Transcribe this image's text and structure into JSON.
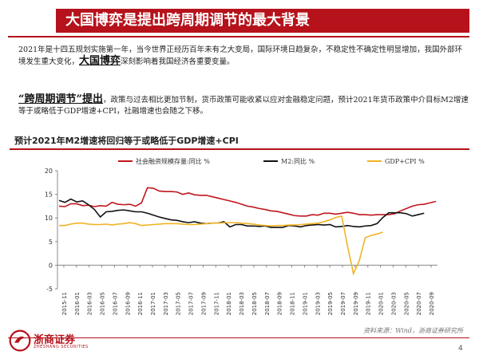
{
  "header": {
    "title": "大国博弈是提出跨周期调节的最大背景"
  },
  "paragraph1": {
    "text_a": "2021年是十四五规划实施第一年，当今世界正经历百年未有之大变局，国际环境日趋复杂，不稳定性不确定性明显增加，我国外部环境发生重大变化，",
    "highlight": "大国博弈",
    "text_b": "深刻影响着我国经济各重要变量。"
  },
  "paragraph2": {
    "highlight": "“跨周期调节”提出",
    "text": "，政策与过去相比更加节制，货币政策可能收紧以应对金融稳定问题，预计2021年货币政策中介目标M2增速等于或略低于GDP增速+CPI，社融增速也会随之下移。"
  },
  "chart_title": "预计2021年M2增速将回归等于或略低于GDP增速+CPI",
  "source": "资料来源：Wind，浙商证券研究所",
  "logo": {
    "name": "浙商证券",
    "sub": "ZHESHANG SECURITIES"
  },
  "page_number": "4",
  "colors": {
    "brand": "#b5121b",
    "social_financing": "#c0161e",
    "m2": "#111111",
    "gdp_cpi": "#f0b323"
  },
  "chart_data": {
    "type": "line",
    "ylim": [
      -5,
      20
    ],
    "yticks": [
      -5,
      0,
      5,
      10,
      15,
      20
    ],
    "x_labels": [
      "2015-11",
      "2016-01",
      "2016-03",
      "2016-05",
      "2016-07",
      "2016-09",
      "2016-11",
      "2017-01",
      "2017-03",
      "2017-05",
      "2017-07",
      "2017-09",
      "2017-11",
      "2018-01",
      "2018-03",
      "2018-05",
      "2018-07",
      "2018-09",
      "2018-11",
      "2019-01",
      "2019-03",
      "2019-05",
      "2019-07",
      "2019-09",
      "2019-11",
      "2020-01",
      "2020-03",
      "2020-05",
      "2020-07",
      "2020-09"
    ],
    "legend_position": "top",
    "series": [
      {
        "name": "社会融资规模存量:同比 %",
        "color": "#c0161e",
        "values": [
          12.5,
          12.4,
          13.0,
          13.0,
          12.6,
          12.7,
          12.4,
          12.6,
          12.5,
          13.3,
          12.9,
          12.8,
          12.9,
          12.5,
          13.2,
          16.4,
          16.3,
          15.7,
          15.6,
          15.6,
          15.5,
          15.0,
          15.3,
          14.9,
          14.8,
          14.8,
          14.5,
          14.2,
          13.9,
          13.6,
          13.3,
          12.9,
          12.5,
          12.3,
          12.0,
          11.8,
          11.5,
          11.4,
          11.1,
          10.8,
          10.5,
          10.4,
          10.4,
          10.7,
          10.6,
          11.0,
          11.0,
          10.8,
          11.0,
          11.2,
          11.0,
          10.7,
          10.7,
          10.6,
          10.7,
          10.7,
          10.7,
          10.9,
          11.5,
          12.0,
          12.5,
          12.8,
          12.9,
          13.2,
          13.5
        ]
      },
      {
        "name": "M2:同比 %",
        "color": "#111111",
        "values": [
          13.7,
          13.3,
          14.0,
          13.4,
          13.6,
          12.8,
          11.8,
          10.2,
          11.3,
          11.4,
          11.6,
          11.7,
          11.5,
          11.3,
          11.3,
          11.0,
          10.6,
          10.2,
          9.9,
          9.6,
          9.5,
          9.2,
          9.0,
          9.2,
          8.9,
          8.8,
          8.9,
          8.9,
          9.2,
          8.1,
          8.6,
          8.6,
          8.3,
          8.3,
          8.2,
          8.3,
          8.0,
          8.0,
          8.0,
          8.4,
          8.3,
          8.1,
          8.4,
          8.5,
          8.6,
          8.5,
          8.6,
          8.1,
          8.2,
          8.4,
          8.2,
          8.1,
          8.3,
          8.4,
          8.8,
          10.1,
          11.1,
          11.1,
          11.1,
          10.9,
          10.4,
          10.7,
          11.0
        ]
      },
      {
        "name": "GDP+CPI %",
        "color": "#f0b323",
        "values": [
          8.4,
          8.4,
          8.7,
          8.9,
          8.9,
          8.7,
          8.6,
          8.6,
          8.7,
          8.5,
          8.7,
          8.8,
          9.0,
          8.8,
          8.4,
          8.5,
          8.6,
          8.7,
          8.8,
          8.8,
          8.8,
          8.7,
          8.6,
          8.6,
          8.7,
          8.8,
          8.9,
          8.9,
          9.0,
          9.0,
          9.0,
          8.9,
          8.8,
          8.7,
          8.5,
          8.4,
          8.3,
          8.4,
          8.4,
          8.5,
          8.5,
          8.6,
          8.7,
          8.8,
          8.9,
          9.2,
          9.6,
          10.1,
          10.4,
          4.0,
          -1.8,
          1.0,
          5.8,
          6.3,
          6.6,
          7.0
        ]
      }
    ]
  }
}
